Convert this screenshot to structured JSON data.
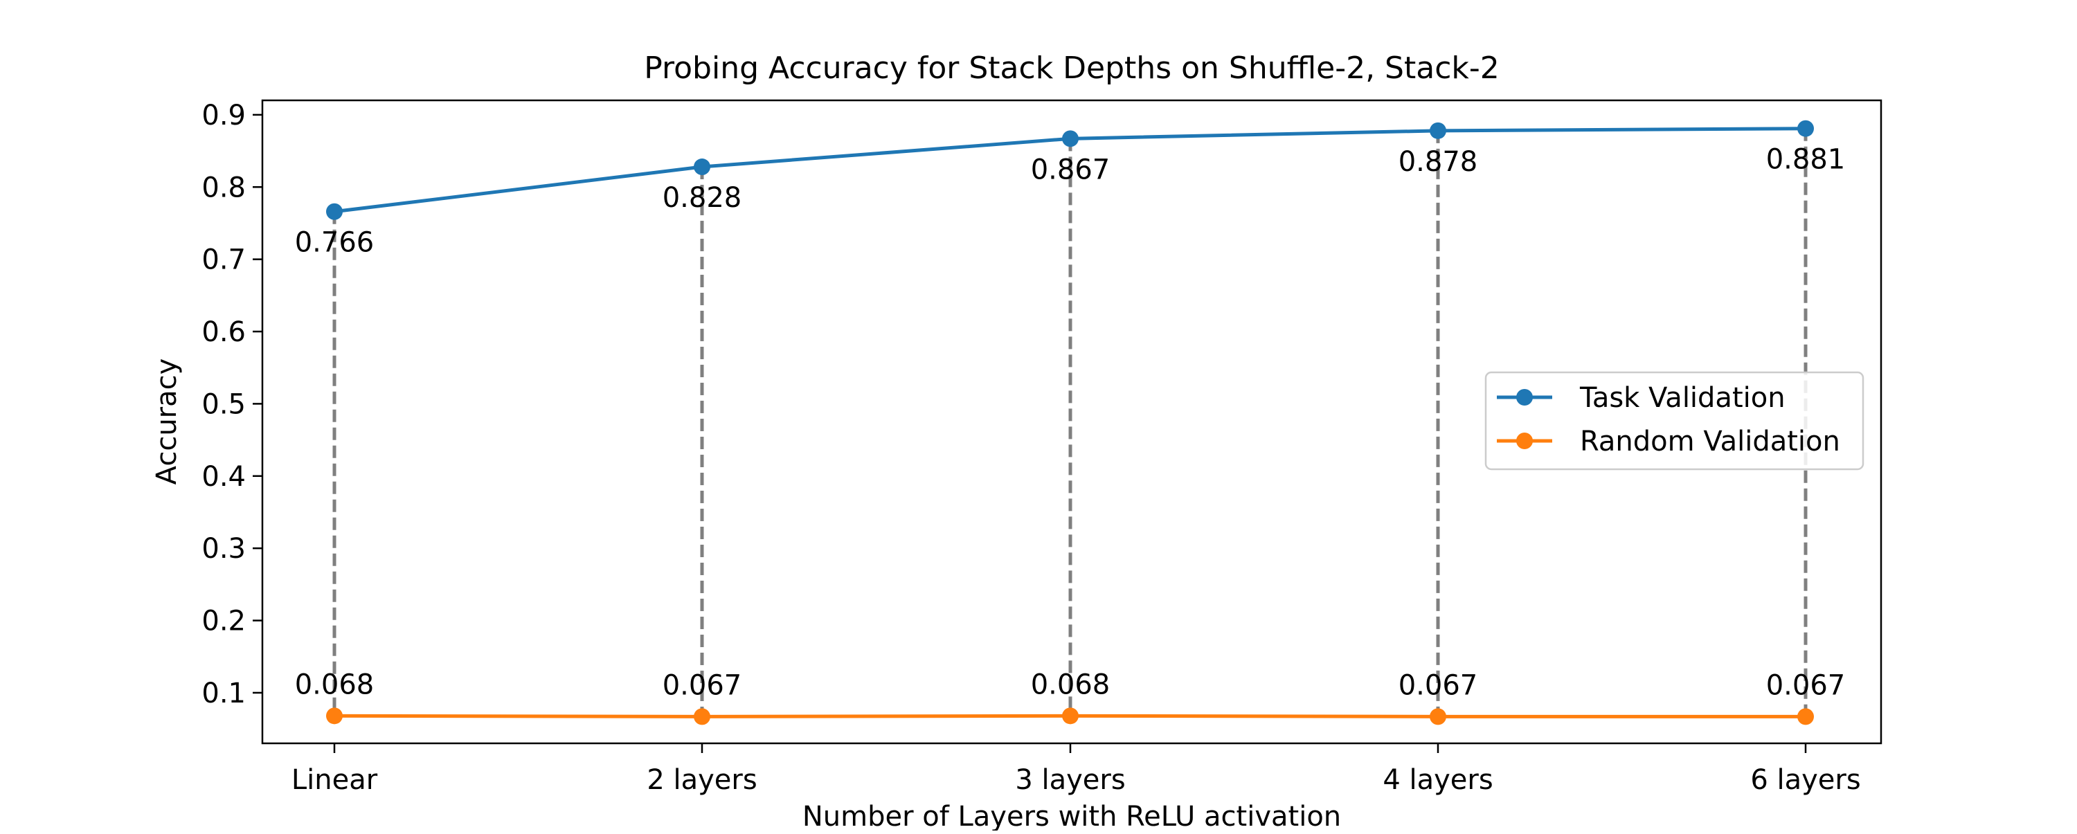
{
  "chart_data": {
    "type": "line",
    "title": "Probing Accuracy for Stack Depths on Shuffle-2, Stack-2",
    "xlabel": "Number of Layers with ReLU activation",
    "ylabel": "Accuracy",
    "categories": [
      "Linear",
      "2 layers",
      "3 layers",
      "4 layers",
      "6 layers"
    ],
    "ylim": [
      0.03,
      0.92
    ],
    "yticks": [
      0.1,
      0.2,
      0.3,
      0.4,
      0.5,
      0.6,
      0.7,
      0.8,
      0.9
    ],
    "ytick_labels": [
      "0.1",
      "0.2",
      "0.3",
      "0.4",
      "0.5",
      "0.6",
      "0.7",
      "0.8",
      "0.9"
    ],
    "grid": false,
    "legend_position": "center-right",
    "connector_style": "gray dashed vertical lines between series",
    "series": [
      {
        "name": "Task Validation",
        "color": "#1f77b4",
        "values": [
          0.766,
          0.828,
          0.867,
          0.878,
          0.881
        ],
        "labels": [
          "0.766",
          "0.828",
          "0.867",
          "0.878",
          "0.881"
        ]
      },
      {
        "name": "Random Validation",
        "color": "#ff7f0e",
        "values": [
          0.068,
          0.067,
          0.068,
          0.067,
          0.067
        ],
        "labels": [
          "0.068",
          "0.067",
          "0.068",
          "0.067",
          "0.067"
        ]
      }
    ],
    "connector_color": "#7f7f7f"
  }
}
